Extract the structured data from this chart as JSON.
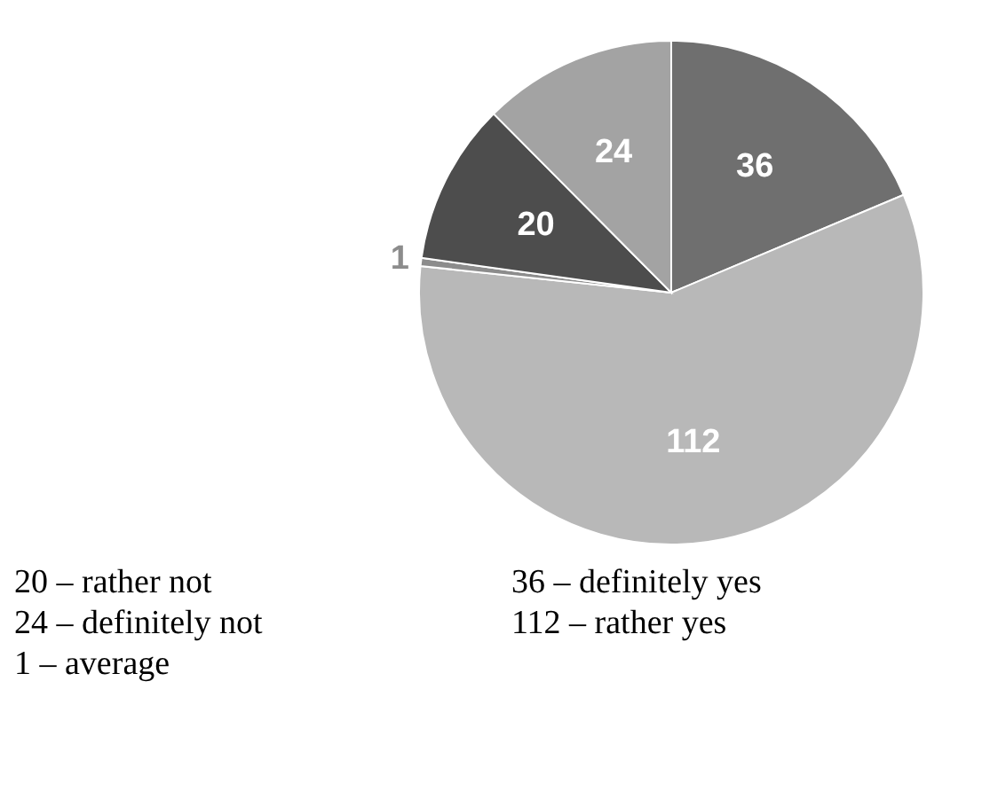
{
  "chart_data": {
    "type": "pie",
    "categories": [
      null,
      null,
      null,
      null,
      null
    ],
    "values": [
      36,
      112,
      1,
      20,
      24
    ],
    "colors": [
      "#6f6f6f",
      "#b8b8b8",
      "#8c8c8c",
      "#4d4d4d",
      "#a3a3a3"
    ],
    "data_labels": true,
    "annotations": [
      "20 – rather not",
      "24 – definitely not",
      "1 – average",
      "36 – definitely yes",
      "112 – rather yes"
    ]
  }
}
